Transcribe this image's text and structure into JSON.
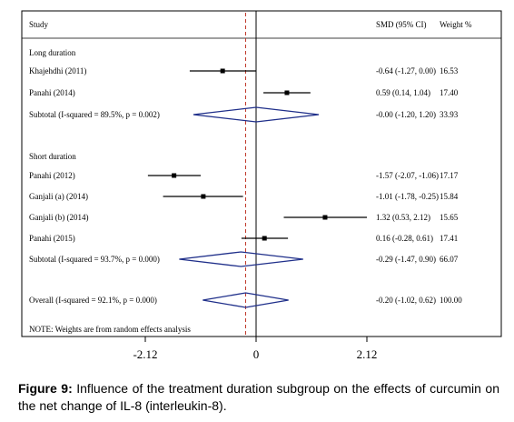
{
  "chart_data": {
    "type": "forest",
    "headers": {
      "study": "Study",
      "ci": "SMD (95% CI)",
      "weight": "Weight  %"
    },
    "null_value": 0,
    "pooled_reference": -0.2,
    "xlim": [
      -3.0,
      3.0
    ],
    "ticks": [
      {
        "value": -2.12,
        "label": "-2.12"
      },
      {
        "value": 0,
        "label": "0"
      },
      {
        "value": 2.12,
        "label": "2.12"
      }
    ],
    "groups": [
      {
        "label": "Long duration",
        "studies": [
          {
            "label": "Khajehdhi (2011)",
            "est": -0.64,
            "lo": -1.27,
            "hi": 0.0,
            "ci_text": "-0.64 (-1.27, 0.00)",
            "weight": "16.53"
          },
          {
            "label": "Panahi (2014)",
            "est": 0.59,
            "lo": 0.14,
            "hi": 1.04,
            "ci_text": "0.59 (0.14, 1.04)",
            "weight": "17.40"
          }
        ],
        "subtotal": {
          "label": "Subtotal  (I-squared = 89.5%, p = 0.002)",
          "est": 0.0,
          "lo": -1.2,
          "hi": 1.2,
          "ci_text": "-0.00 (-1.20, 1.20)",
          "weight": "33.93"
        }
      },
      {
        "label": "Short duration",
        "studies": [
          {
            "label": "Panahi (2012)",
            "est": -1.57,
            "lo": -2.07,
            "hi": -1.06,
            "ci_text": "-1.57 (-2.07, -1.06)",
            "weight": "17.17"
          },
          {
            "label": "Ganjali (a) (2014)",
            "est": -1.01,
            "lo": -1.78,
            "hi": -0.25,
            "ci_text": "-1.01 (-1.78, -0.25)",
            "weight": "15.84"
          },
          {
            "label": "Ganjali (b) (2014)",
            "est": 1.32,
            "lo": 0.53,
            "hi": 2.12,
            "ci_text": "1.32 (0.53, 2.12)",
            "weight": "15.65"
          },
          {
            "label": "Panahi (2015)",
            "est": 0.16,
            "lo": -0.28,
            "hi": 0.61,
            "ci_text": "0.16 (-0.28, 0.61)",
            "weight": "17.41"
          }
        ],
        "subtotal": {
          "label": "Subtotal  (I-squared = 93.7%, p = 0.000)",
          "est": -0.29,
          "lo": -1.47,
          "hi": 0.9,
          "ci_text": "-0.29 (-1.47, 0.90)",
          "weight": "66.07"
        }
      }
    ],
    "overall": {
      "label": "Overall  (I-squared = 92.1%, p = 0.000)",
      "est": -0.2,
      "lo": -1.02,
      "hi": 0.62,
      "ci_text": "-0.20 (-1.02, 0.62)",
      "weight": "100.00"
    },
    "note": "NOTE: Weights are from random effects analysis",
    "colors": {
      "diamond": "#1f2f8a",
      "reference_line": "#c0392b",
      "ink": "#000000"
    }
  },
  "caption": {
    "label": "Figure 9:",
    "text": " Influence of the treatment duration subgroup on the effects of curcumin on the net change of IL-8 (interleukin-8)."
  }
}
